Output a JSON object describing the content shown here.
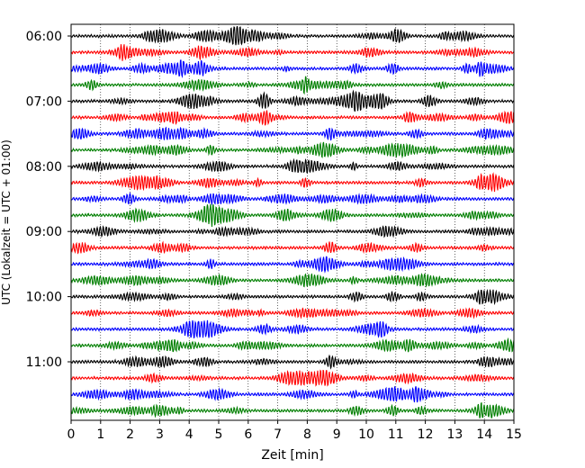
{
  "chart_data": {
    "type": "line",
    "title": "",
    "xlabel": "Zeit  [min]",
    "ylabel": "UTC (Lokalzeit = UTC + 01:00)",
    "xlim": [
      0,
      15
    ],
    "xticks": [
      "0",
      "1",
      "2",
      "3",
      "4",
      "5",
      "6",
      "7",
      "8",
      "9",
      "10",
      "11",
      "12",
      "13",
      "14",
      "15"
    ],
    "y_tick_labels": [
      "06:00",
      "07:00",
      "08:00",
      "09:00",
      "10:00",
      "11:00"
    ],
    "start_time": "06:00",
    "end_time": "12:00",
    "trace_interval_min": 15,
    "trace_count": 24,
    "trace_colors": [
      "#000000",
      "#ff0000",
      "#0000ff",
      "#007f00"
    ],
    "grid": "vertical dotted lines at each minute"
  }
}
